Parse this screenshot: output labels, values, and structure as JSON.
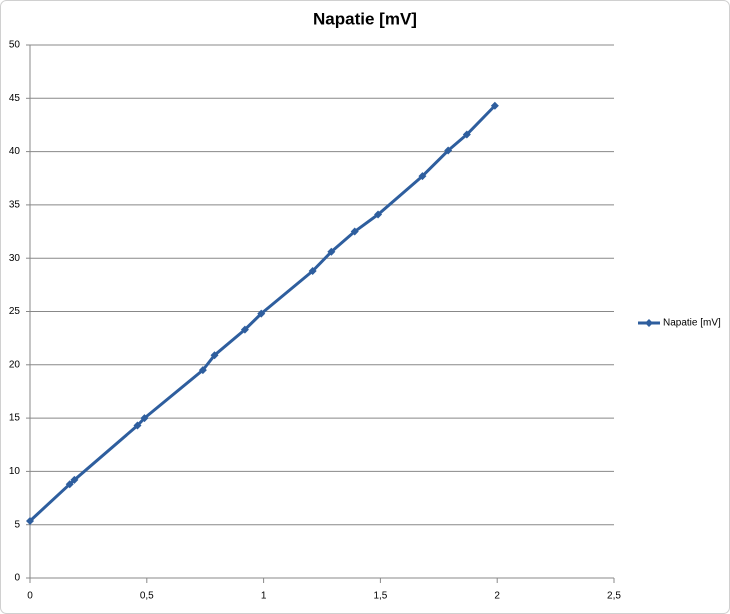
{
  "chart_data": {
    "type": "line",
    "title": "Napatie [mV]",
    "x": [
      0,
      0.17,
      0.19,
      0.46,
      0.49,
      0.74,
      0.79,
      0.92,
      0.99,
      1.21,
      1.29,
      1.39,
      1.49,
      1.68,
      1.79,
      1.87,
      1.99
    ],
    "series": [
      {
        "name": "Napatie [mV]",
        "color": "#2e5e9e",
        "values": [
          5.35,
          8.8,
          9.2,
          14.3,
          15.0,
          19.5,
          20.9,
          23.3,
          24.8,
          28.8,
          30.6,
          32.5,
          34.1,
          37.7,
          40.1,
          41.6,
          44.3
        ]
      }
    ],
    "xlim": [
      0,
      2.5
    ],
    "xticks": [
      0,
      {
        "value": 0.5,
        "label": "0,5"
      },
      1,
      {
        "value": 1.5,
        "label": "1,5"
      },
      2,
      {
        "value": 2.5,
        "label": "2,5"
      }
    ],
    "ylim": [
      0,
      50
    ],
    "yticks": [
      0,
      5,
      10,
      15,
      20,
      25,
      30,
      35,
      40,
      45,
      50
    ],
    "grid": true,
    "legend": "right"
  }
}
